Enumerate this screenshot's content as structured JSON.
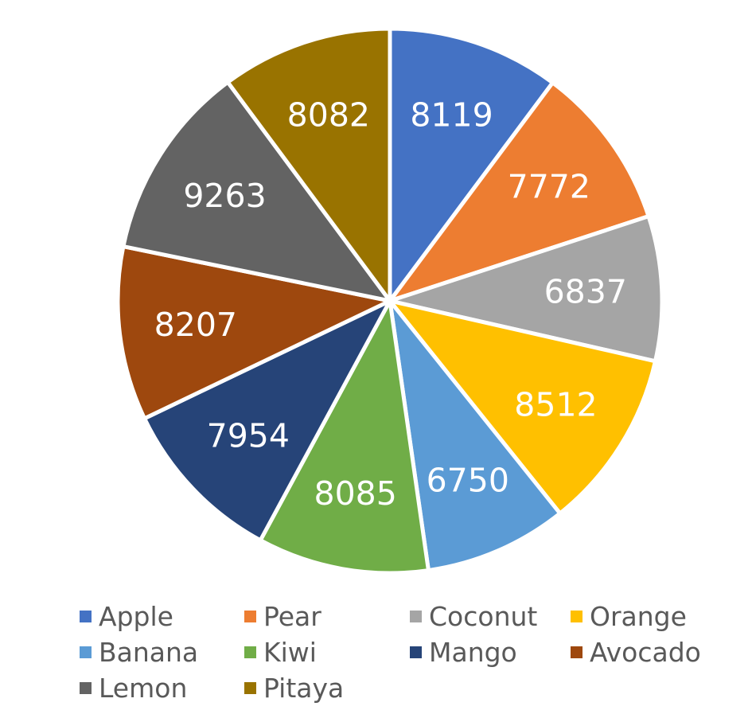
{
  "chart_data": {
    "type": "pie",
    "title": "",
    "categories": [
      "Apple",
      "Pear",
      "Coconut",
      "Orange",
      "Banana",
      "Kiwi",
      "Mango",
      "Avocado",
      "Lemon",
      "Pitaya"
    ],
    "values": [
      8119,
      7772,
      6837,
      8512,
      6750,
      8085,
      7954,
      8207,
      9263,
      8082
    ],
    "labels": [
      "8119",
      "7772",
      "6837",
      "8512",
      "6750",
      "8085",
      "7954",
      "8207",
      "9263",
      "8082"
    ],
    "colors": [
      "#4472C4",
      "#ED7D31",
      "#A5A5A5",
      "#FFC000",
      "#5B9BD5",
      "#70AD47",
      "#264478",
      "#9E480E",
      "#636363",
      "#997300"
    ],
    "start_angle": "12 o'clock, clockwise",
    "legend_position": "bottom",
    "data_labels": "inside"
  }
}
